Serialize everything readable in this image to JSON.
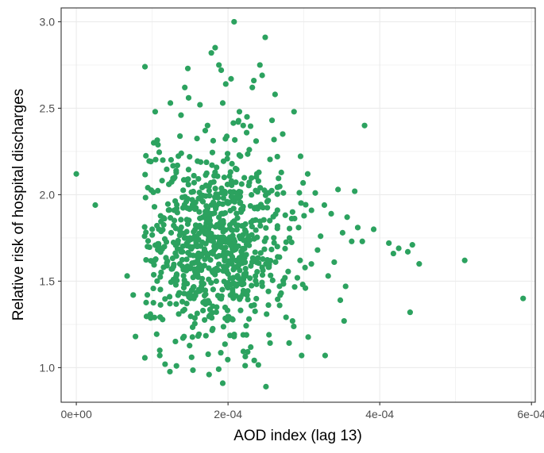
{
  "chart_data": {
    "type": "scatter",
    "title": "",
    "xlabel": "AOD index (lag 13)",
    "ylabel": "Relative risk of hospital discharges",
    "xlim": [
      -2e-05,
      0.000605
    ],
    "ylim": [
      0.8,
      3.08
    ],
    "x_ticks": [
      {
        "value": 0.0,
        "label": "0e+00"
      },
      {
        "value": 0.0002,
        "label": "2e-04"
      },
      {
        "value": 0.0004,
        "label": "4e-04"
      },
      {
        "value": 0.0006,
        "label": "6e-04"
      }
    ],
    "y_ticks": [
      {
        "value": 1.0,
        "label": "1.0"
      },
      {
        "value": 1.5,
        "label": "1.5"
      },
      {
        "value": 2.0,
        "label": "2.0"
      },
      {
        "value": 2.5,
        "label": "2.5"
      },
      {
        "value": 3.0,
        "label": "3.0"
      }
    ],
    "grid": true,
    "colors": {
      "points": "#2ca25f",
      "grid": "#ebebeb",
      "panel_border": "#333333"
    },
    "series": [
      {
        "points": [
          [
            0.0,
            2.12
          ],
          [
            2.5e-05,
            1.94
          ],
          [
            6.7e-05,
            1.53
          ],
          [
            7.5e-05,
            1.42
          ],
          [
            7.8e-05,
            1.18
          ],
          [
            9e-05,
            1.76
          ],
          [
            9.05e-05,
            2.74
          ],
          [
            0.000103,
            1.93
          ],
          [
            0.000103,
            1.62
          ],
          [
            0.000103,
            1.29
          ],
          [
            0.000104,
            2.48
          ],
          [
            0.000102,
            2.3
          ],
          [
            0.00011,
            1.1
          ],
          [
            0.00011,
            1.07
          ],
          [
            0.000114,
            2.2
          ],
          [
            0.000117,
            1.02
          ],
          [
            0.000122,
            2.06
          ],
          [
            0.000123,
            1.41
          ],
          [
            0.000124,
            2.53
          ],
          [
            0.000129,
            1.91
          ],
          [
            0.000132,
            1.01
          ],
          [
            0.000138,
            2.46
          ],
          [
            0.000142,
            1.18
          ],
          [
            0.000143,
            2.62
          ],
          [
            0.000147,
            2.73
          ],
          [
            0.000148,
            2.56
          ],
          [
            0.000152,
            1.06
          ],
          [
            0.000155,
            2.11
          ],
          [
            0.000158,
            1.71
          ],
          [
            0.000163,
            2.52
          ],
          [
            0.000167,
            1.33
          ],
          [
            0.000173,
            2.4
          ],
          [
            0.000175,
            0.96
          ],
          [
            0.000178,
            2.82
          ],
          [
            0.000183,
            2.85
          ],
          [
            0.000188,
            2.75
          ],
          [
            0.000191,
            2.72
          ],
          [
            0.000193,
            2.53
          ],
          [
            0.000193,
            0.91
          ],
          [
            0.000197,
            2.64
          ],
          [
            0.000204,
            2.67
          ],
          [
            0.000208,
            1.18
          ],
          [
            0.000208,
            3.0
          ],
          [
            0.000215,
            2.48
          ],
          [
            0.00022,
            2.4
          ],
          [
            0.000225,
            2.45
          ],
          [
            0.000228,
            2.26
          ],
          [
            0.000232,
            2.62
          ],
          [
            0.000234,
            2.66
          ],
          [
            0.000237,
            2.31
          ],
          [
            0.000242,
            2.75
          ],
          [
            0.000245,
            2.69
          ],
          [
            0.000249,
            2.91
          ],
          [
            0.00025,
            0.89
          ],
          [
            0.000254,
            1.19
          ],
          [
            0.000258,
            2.43
          ],
          [
            0.000262,
            2.58
          ],
          [
            0.000265,
            2.22
          ],
          [
            0.000268,
            1.36
          ],
          [
            0.000273,
            2.01
          ],
          [
            0.000281,
            1.75
          ],
          [
            0.000285,
            1.27
          ],
          [
            0.000287,
            2.48
          ],
          [
            0.000293,
            1.81
          ],
          [
            0.000297,
            1.07
          ],
          [
            0.000302,
            1.46
          ],
          [
            0.000305,
            2.12
          ],
          [
            0.00031,
            1.91
          ],
          [
            0.000315,
            2.01
          ],
          [
            0.000318,
            1.68
          ],
          [
            0.000322,
            1.76
          ],
          [
            0.000327,
            1.94
          ],
          [
            0.000328,
            1.07
          ],
          [
            0.000332,
            1.53
          ],
          [
            0.000336,
            1.89
          ],
          [
            0.00034,
            1.61
          ],
          [
            0.000345,
            2.03
          ],
          [
            0.000348,
            1.39
          ],
          [
            0.000351,
            1.78
          ],
          [
            0.000353,
            1.27
          ],
          [
            0.000355,
            1.47
          ],
          [
            0.000357,
            1.87
          ],
          [
            0.000363,
            1.73
          ],
          [
            0.000367,
            2.02
          ],
          [
            0.000371,
            1.81
          ],
          [
            0.000377,
            1.73
          ],
          [
            0.00038,
            2.4
          ],
          [
            0.000392,
            1.8
          ],
          [
            0.000412,
            1.72
          ],
          [
            0.000418,
            1.66
          ],
          [
            0.000425,
            1.69
          ],
          [
            0.000437,
            1.67
          ],
          [
            0.00044,
            1.32
          ],
          [
            0.000443,
            1.71
          ],
          [
            0.000452,
            1.6
          ],
          [
            0.000512,
            1.62
          ],
          [
            0.000589,
            1.4
          ],
          [
            0.00015,
            1.75
          ],
          [
            0.00016,
            1.62
          ],
          [
            0.00017,
            1.88
          ],
          [
            0.00018,
            1.55
          ],
          [
            0.00019,
            1.7
          ],
          [
            0.0002,
            1.95
          ],
          [
            0.00021,
            1.48
          ],
          [
            0.00022,
            1.82
          ],
          [
            0.00013,
            1.5
          ],
          [
            0.00014,
            1.67
          ],
          [
            0.000165,
            1.45
          ],
          [
            0.000175,
            2.05
          ],
          [
            0.000185,
            1.35
          ],
          [
            0.000195,
            2.1
          ],
          [
            0.000205,
            1.6
          ],
          [
            0.000215,
            1.76
          ],
          [
            0.000225,
            1.42
          ],
          [
            0.000235,
            1.92
          ],
          [
            0.000245,
            1.58
          ],
          [
            0.000255,
            1.85
          ],
          [
            0.000125,
            1.78
          ],
          [
            0.000135,
            1.31
          ],
          [
            0.000145,
            1.96
          ],
          [
            0.000155,
            1.4
          ],
          [
            0.000265,
            1.7
          ],
          [
            0.000275,
            1.52
          ],
          [
            0.000285,
            1.9
          ],
          [
            0.000295,
            1.62
          ],
          [
            0.000115,
            1.58
          ],
          [
            0.000108,
            1.68
          ]
        ]
      }
    ]
  }
}
